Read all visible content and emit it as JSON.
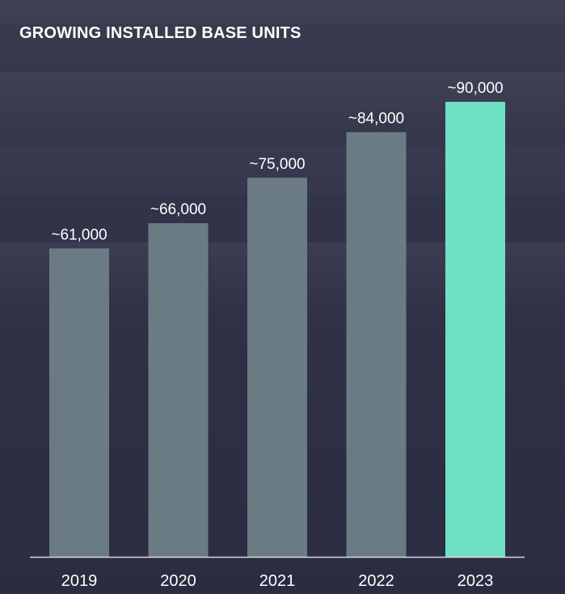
{
  "chart_data": {
    "type": "bar",
    "title": "GROWING INSTALLED BASE UNITS",
    "xlabel": "",
    "ylabel": "",
    "categories": [
      "2019",
      "2020",
      "2021",
      "2022",
      "2023"
    ],
    "values": [
      61000,
      66000,
      75000,
      84000,
      90000
    ],
    "data_labels": [
      "~61,000",
      "~66,000",
      "~75,000",
      "~84,000",
      "~90,000"
    ],
    "ylim": [
      0,
      90000
    ],
    "grid": false,
    "legend": "none",
    "colors": {
      "bar": "#6b7b84",
      "highlight_bar": "#6ee0c4",
      "axis": "#d8d8df",
      "text": "#ffffff",
      "background": "#2f3045"
    },
    "highlight_index": 4
  }
}
